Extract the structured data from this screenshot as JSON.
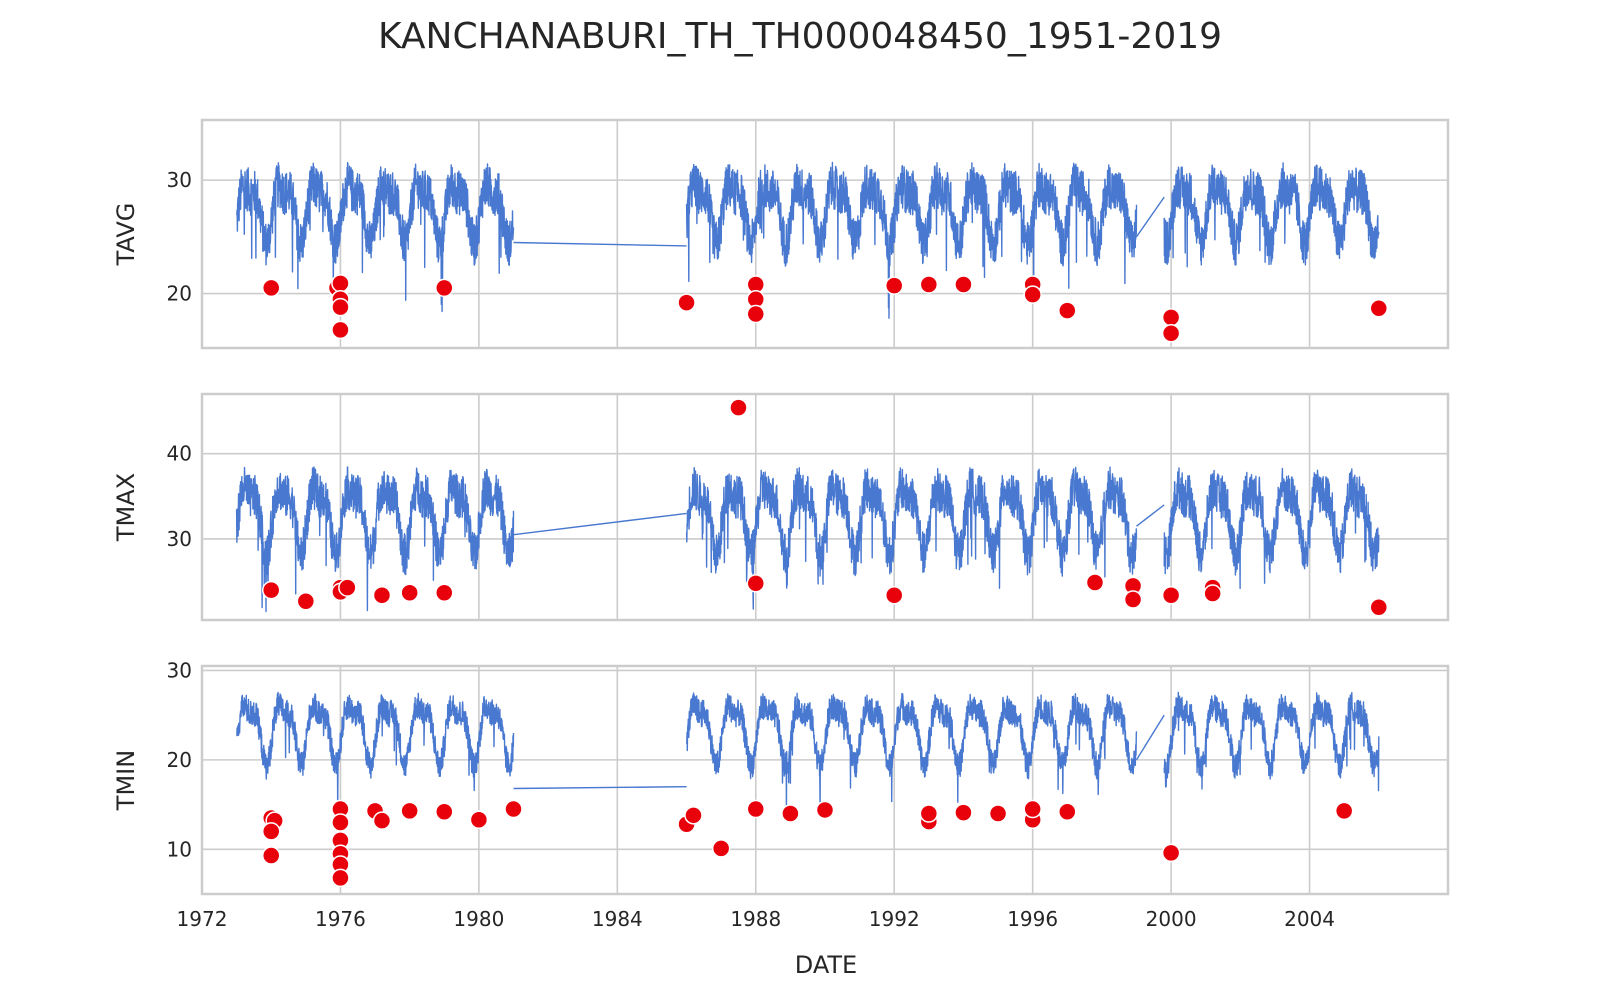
{
  "chart_data": {
    "type": "line",
    "title": "KANCHANABURI_TH_TH000048450_1951-2019",
    "xlabel": "DATE",
    "x_ticks": [
      "1972",
      "1976",
      "1980",
      "1984",
      "1988",
      "1992",
      "1996",
      "2000",
      "2004"
    ],
    "xlim": [
      1972.0,
      2008.0
    ],
    "grid": true,
    "colors": {
      "line": "#4878cf",
      "outlier": "#e8000b"
    },
    "panels": [
      {
        "ylabel": "TAVG",
        "ylim": [
          15.2,
          35.3
        ],
        "yticks": [
          20,
          30
        ],
        "segments": [
          [
            1973.0,
            1981.0
          ],
          [
            1986.0,
            1999.0
          ],
          [
            1999.8,
            2006.0
          ]
        ],
        "connectors": [
          [
            1981.0,
            24.5,
            1986.0,
            24.2
          ],
          [
            1999.0,
            25.0,
            1999.8,
            28.5
          ]
        ],
        "baseline": 27.6,
        "amplitude": 2.3,
        "noise": 2.0,
        "outliers": [
          [
            1974.0,
            20.5
          ],
          [
            1975.9,
            20.5
          ],
          [
            1976.0,
            20.9
          ],
          [
            1976.0,
            19.5
          ],
          [
            1976.0,
            18.8
          ],
          [
            1976.0,
            16.8
          ],
          [
            1979.0,
            20.5
          ],
          [
            1986.0,
            19.2
          ],
          [
            1988.0,
            20.8
          ],
          [
            1988.0,
            19.5
          ],
          [
            1988.0,
            18.2
          ],
          [
            1992.0,
            20.7
          ],
          [
            1993.0,
            20.8
          ],
          [
            1994.0,
            20.8
          ],
          [
            1996.0,
            20.8
          ],
          [
            1996.0,
            19.9
          ],
          [
            1997.0,
            18.5
          ],
          [
            2000.0,
            17.9
          ],
          [
            2000.0,
            16.5
          ],
          [
            2006.0,
            18.7
          ]
        ]
      },
      {
        "ylabel": "TMAX",
        "ylim": [
          20.5,
          47.0
        ],
        "yticks": [
          30,
          40
        ],
        "segments": [
          [
            1973.0,
            1981.0
          ],
          [
            1986.0,
            1999.0
          ],
          [
            1999.8,
            2006.0
          ]
        ],
        "connectors": [
          [
            1981.0,
            30.5,
            1986.0,
            33.0
          ],
          [
            1999.0,
            31.5,
            1999.8,
            34.0
          ]
        ],
        "baseline": 33.0,
        "amplitude": 3.5,
        "noise": 2.5,
        "outliers": [
          [
            1974.0,
            24.0
          ],
          [
            1975.0,
            22.7
          ],
          [
            1976.0,
            24.3
          ],
          [
            1976.0,
            23.8
          ],
          [
            1976.2,
            24.3
          ],
          [
            1977.2,
            23.4
          ],
          [
            1978.0,
            23.7
          ],
          [
            1979.0,
            23.7
          ],
          [
            1987.5,
            45.4
          ],
          [
            1988.0,
            24.8
          ],
          [
            1992.0,
            23.4
          ],
          [
            1997.8,
            24.9
          ],
          [
            1998.9,
            24.5
          ],
          [
            1998.9,
            22.9
          ],
          [
            2000.0,
            23.4
          ],
          [
            2001.2,
            24.3
          ],
          [
            2001.2,
            23.6
          ],
          [
            2006.0,
            22.0
          ]
        ]
      },
      {
        "ylabel": "TMIN",
        "ylim": [
          5.0,
          30.5
        ],
        "yticks": [
          10,
          20,
          30
        ],
        "segments": [
          [
            1973.0,
            1981.0
          ],
          [
            1986.0,
            1999.0
          ],
          [
            1999.8,
            2006.0
          ]
        ],
        "connectors": [
          [
            1981.0,
            16.8,
            1986.0,
            17.0
          ],
          [
            1999.0,
            20.0,
            1999.8,
            25.0
          ]
        ],
        "baseline": 23.5,
        "amplitude": 3.0,
        "noise": 1.5,
        "outliers": [
          [
            1974.0,
            13.5
          ],
          [
            1974.1,
            13.2
          ],
          [
            1974.0,
            12.0
          ],
          [
            1974.0,
            9.3
          ],
          [
            1976.0,
            14.5
          ],
          [
            1976.0,
            13.0
          ],
          [
            1976.0,
            11.0
          ],
          [
            1976.0,
            9.5
          ],
          [
            1976.0,
            8.3
          ],
          [
            1976.0,
            6.8
          ],
          [
            1977.0,
            14.3
          ],
          [
            1977.2,
            13.2
          ],
          [
            1978.0,
            14.3
          ],
          [
            1979.0,
            14.2
          ],
          [
            1980.0,
            13.3
          ],
          [
            1981.0,
            14.5
          ],
          [
            1986.0,
            12.8
          ],
          [
            1986.2,
            13.8
          ],
          [
            1987.0,
            10.1
          ],
          [
            1988.0,
            14.5
          ],
          [
            1989.0,
            14.0
          ],
          [
            1990.0,
            14.4
          ],
          [
            1993.0,
            13.1
          ],
          [
            1993.0,
            14.0
          ],
          [
            1994.0,
            14.1
          ],
          [
            1995.0,
            14.0
          ],
          [
            1996.0,
            13.3
          ],
          [
            1996.0,
            14.5
          ],
          [
            1997.0,
            14.2
          ],
          [
            2000.0,
            9.6
          ],
          [
            2005.0,
            14.3
          ]
        ]
      }
    ]
  }
}
